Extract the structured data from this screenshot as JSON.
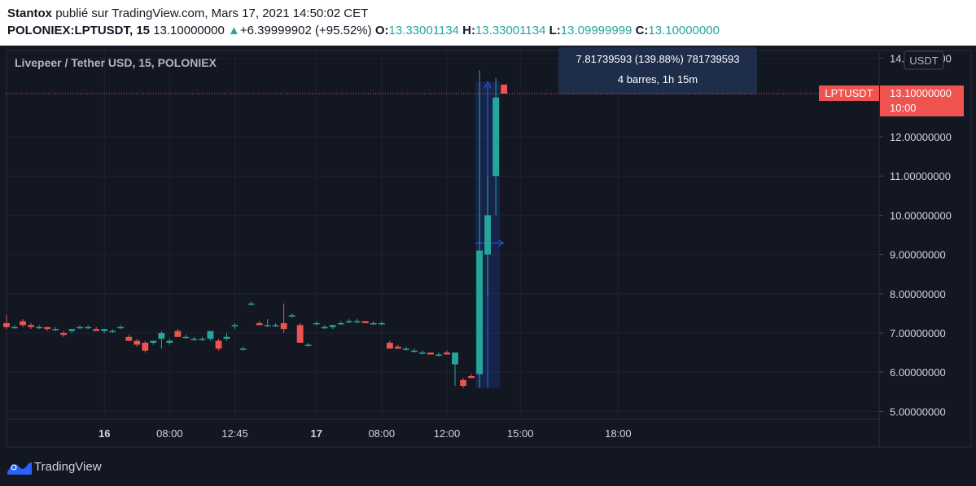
{
  "header": {
    "author": "Stantox",
    "published_text": "publié sur TradingView.com, Mars 17, 2021 14:50:02 CET",
    "symbol_full": "POLONIEX:LPTUSDT, 15",
    "last": "13.10000000",
    "change_arrow": "▲",
    "change": "+6.39999902 (+95.52%)",
    "o_label": "O:",
    "o": "13.33001134",
    "h_label": "H:",
    "h": "13.33001134",
    "l_label": "L:",
    "l": "13.09999999",
    "c_label": "C:",
    "c": "13.10000000"
  },
  "colors": {
    "up": "#26a69a",
    "down": "#ef5350",
    "bg": "#131722",
    "grid": "#1e222d",
    "axis_text": "#d1d4dc"
  },
  "footer": {
    "logo_text": "TradingView"
  },
  "chart_data": {
    "type": "candlestick",
    "title": "Livepeer / Tether USD, 15, POLONIEX",
    "currency_label": "USDT",
    "ylim": [
      4.8,
      14.2
    ],
    "y_ticks": [
      {
        "v": 5,
        "label": "5.00000000"
      },
      {
        "v": 6,
        "label": "6.00000000"
      },
      {
        "v": 7,
        "label": "7.00000000"
      },
      {
        "v": 8,
        "label": "8.00000000"
      },
      {
        "v": 9,
        "label": "9.00000000"
      },
      {
        "v": 10,
        "label": "10.00000000"
      },
      {
        "v": 11,
        "label": "11.00000000"
      },
      {
        "v": 12,
        "label": "12.00000000"
      },
      {
        "v": 14,
        "label": "14.00000000"
      }
    ],
    "x_range": [
      0,
      107
    ],
    "x_ticks": [
      {
        "i": 12,
        "label": "16",
        "bold": true
      },
      {
        "i": 20,
        "label": "08:00",
        "bold": false
      },
      {
        "i": 28,
        "label": "12:45",
        "bold": false
      },
      {
        "i": 38,
        "label": "17",
        "bold": true
      },
      {
        "i": 46,
        "label": "08:00",
        "bold": false
      },
      {
        "i": 54,
        "label": "12:00",
        "bold": false
      },
      {
        "i": 63,
        "label": "15:00",
        "bold": false
      },
      {
        "i": 75,
        "label": "18:00",
        "bold": false
      }
    ],
    "candles": [
      [
        0,
        7.25,
        7.45,
        7.1,
        7.15
      ],
      [
        1,
        7.15,
        7.2,
        7.1,
        7.15
      ],
      [
        2,
        7.3,
        7.35,
        7.15,
        7.2
      ],
      [
        3,
        7.2,
        7.25,
        7.1,
        7.15
      ],
      [
        4,
        7.15,
        7.2,
        7.1,
        7.15
      ],
      [
        5,
        7.15,
        7.15,
        7.05,
        7.1
      ],
      [
        6,
        7.1,
        7.15,
        7.05,
        7.1
      ],
      [
        7,
        7.0,
        7.05,
        6.9,
        6.95
      ],
      [
        8,
        7.05,
        7.1,
        7.0,
        7.1
      ],
      [
        9,
        7.15,
        7.2,
        7.1,
        7.15
      ],
      [
        10,
        7.15,
        7.2,
        7.1,
        7.15
      ],
      [
        11,
        7.1,
        7.15,
        7.05,
        7.05
      ],
      [
        12,
        7.05,
        7.1,
        7.0,
        7.1
      ],
      [
        13,
        7.05,
        7.1,
        7.0,
        7.05
      ],
      [
        14,
        7.15,
        7.2,
        7.1,
        7.15
      ],
      [
        15,
        6.9,
        6.95,
        6.8,
        6.8
      ],
      [
        16,
        6.8,
        6.85,
        6.65,
        6.7
      ],
      [
        17,
        6.75,
        6.8,
        6.5,
        6.55
      ],
      [
        18,
        6.75,
        6.8,
        6.7,
        6.8
      ],
      [
        19,
        6.85,
        7.05,
        6.6,
        7.0
      ],
      [
        20,
        6.75,
        6.85,
        6.7,
        6.8
      ],
      [
        21,
        7.05,
        7.1,
        6.9,
        6.9
      ],
      [
        22,
        6.9,
        6.95,
        6.85,
        6.9
      ],
      [
        23,
        6.85,
        6.9,
        6.8,
        6.85
      ],
      [
        24,
        6.85,
        6.9,
        6.8,
        6.85
      ],
      [
        25,
        6.85,
        7.0,
        6.8,
        7.05
      ],
      [
        26,
        6.8,
        6.85,
        6.55,
        6.6
      ],
      [
        27,
        6.85,
        7.0,
        6.8,
        6.9
      ],
      [
        28,
        7.2,
        7.25,
        7.1,
        7.2
      ],
      [
        29,
        6.6,
        6.65,
        6.55,
        6.6
      ],
      [
        30,
        7.75,
        7.8,
        7.7,
        7.75
      ],
      [
        31,
        7.25,
        7.3,
        7.2,
        7.2
      ],
      [
        32,
        7.2,
        7.35,
        7.15,
        7.2
      ],
      [
        33,
        7.2,
        7.25,
        7.15,
        7.2
      ],
      [
        34,
        7.25,
        7.75,
        7.0,
        7.1
      ],
      [
        35,
        7.45,
        7.5,
        7.4,
        7.45
      ],
      [
        36,
        7.2,
        7.25,
        6.8,
        6.75
      ],
      [
        37,
        6.7,
        6.75,
        6.65,
        6.7
      ],
      [
        38,
        7.25,
        7.3,
        7.2,
        7.25
      ],
      [
        39,
        7.15,
        7.2,
        7.1,
        7.15
      ],
      [
        40,
        7.15,
        7.2,
        7.1,
        7.2
      ],
      [
        41,
        7.25,
        7.3,
        7.2,
        7.25
      ],
      [
        42,
        7.3,
        7.35,
        7.25,
        7.3
      ],
      [
        43,
        7.3,
        7.35,
        7.25,
        7.3
      ],
      [
        44,
        7.3,
        7.3,
        7.25,
        7.25
      ],
      [
        45,
        7.25,
        7.3,
        7.2,
        7.25
      ],
      [
        46,
        7.25,
        7.3,
        7.2,
        7.25
      ],
      [
        47,
        6.75,
        6.8,
        6.6,
        6.6
      ],
      [
        48,
        6.65,
        6.7,
        6.6,
        6.6
      ],
      [
        49,
        6.6,
        6.65,
        6.55,
        6.6
      ],
      [
        50,
        6.55,
        6.6,
        6.5,
        6.55
      ],
      [
        51,
        6.5,
        6.55,
        6.45,
        6.5
      ],
      [
        52,
        6.5,
        6.5,
        6.45,
        6.45
      ],
      [
        53,
        6.45,
        6.5,
        6.4,
        6.45
      ],
      [
        54,
        6.5,
        6.55,
        6.45,
        6.45
      ],
      [
        55,
        6.2,
        6.5,
        5.65,
        6.5
      ],
      [
        56,
        5.8,
        5.85,
        5.6,
        5.65
      ],
      [
        57,
        5.9,
        5.95,
        5.85,
        5.85
      ],
      [
        58,
        5.95,
        13.7,
        5.6,
        9.1
      ],
      [
        59,
        9.0,
        11.0,
        7.95,
        10.0
      ],
      [
        60,
        11.0,
        13.5,
        10.0,
        13.0
      ],
      [
        61,
        13.33,
        13.33,
        13.1,
        13.1
      ]
    ],
    "measure_box": {
      "i_start": 57.5,
      "i_end": 60.5,
      "low": 5.6,
      "high": 13.4,
      "line1": "7.81739593 (139.88%) 781739593",
      "line2": "4 barres, 1h 15m"
    },
    "price_label": {
      "symbol": "LPTUSDT",
      "price": "13.10000000",
      "countdown": "10:00",
      "value": 13.1
    }
  }
}
